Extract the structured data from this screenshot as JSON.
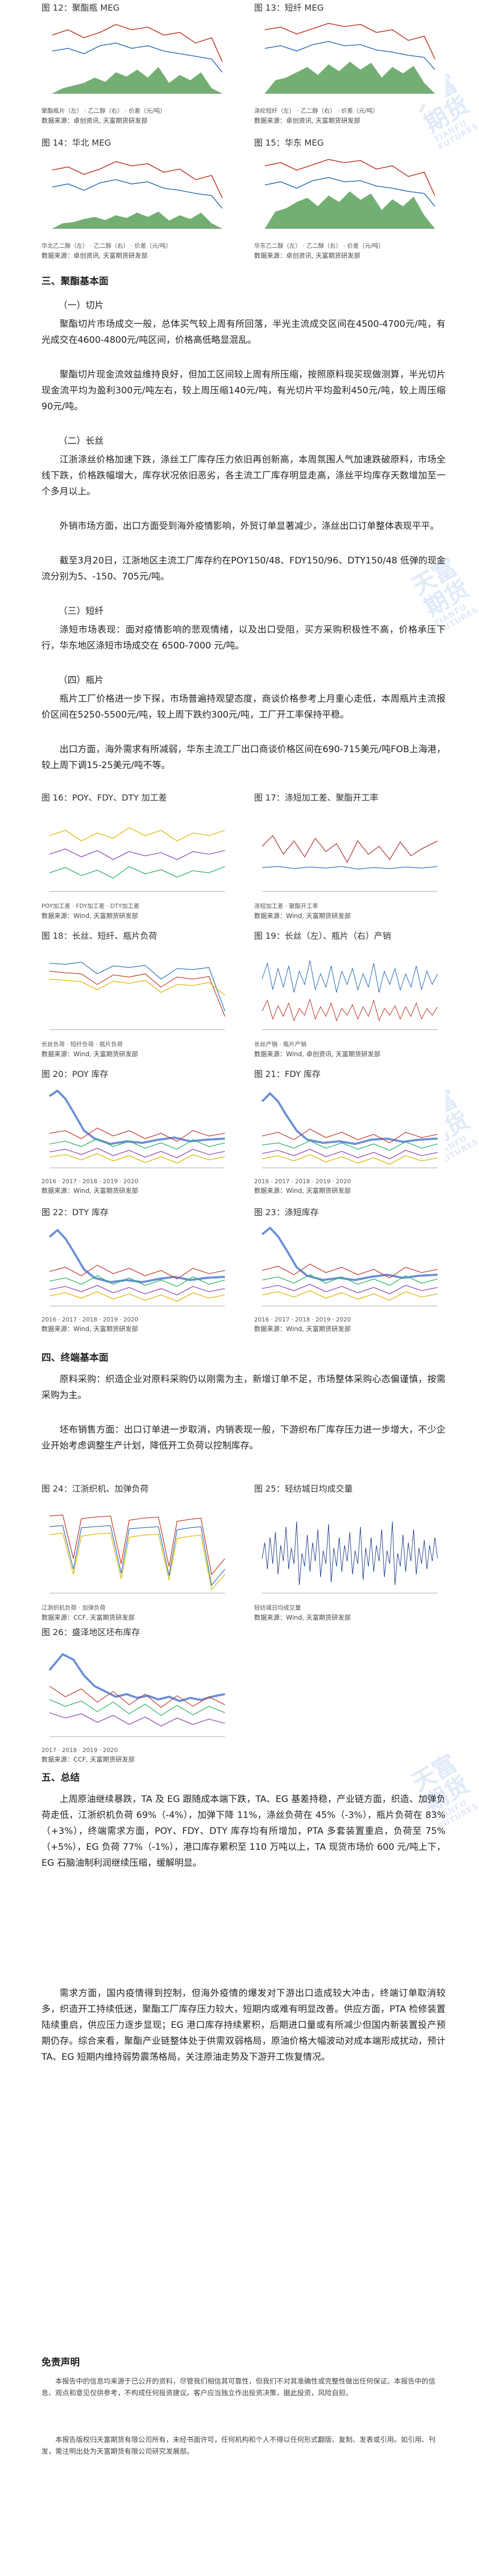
{
  "watermark": {
    "cn": "天富期货",
    "en": "TIANFU FUTURES"
  },
  "figs_top": [
    {
      "title": "图 12：聚酯瓶 MEG",
      "source": "数据来源：卓创资讯, 天富期货研发部",
      "legend": [
        "聚酯瓶片（左）",
        "乙二醇（右）",
        "价差（元/吨）"
      ]
    },
    {
      "title": "图 13：短纤 MEG",
      "source": "数据来源：卓创资讯, 天富期货研发部",
      "legend": [
        "涤纶短纤（左）",
        "乙二醇（右）",
        "价差（元/吨）"
      ]
    },
    {
      "title": "图 14：华北 MEG",
      "source": "数据来源：卓创资讯, 天富期货研发部",
      "legend": [
        "华北乙二醇（左）",
        "乙二醇（右）",
        "价差（元/吨）"
      ]
    },
    {
      "title": "图 15：华东 MEG",
      "source": "数据来源：卓创资讯, 天富期货研发部",
      "legend": [
        "华东乙二醇（左）",
        "乙二醇（右）",
        "价差（元/吨）"
      ]
    }
  ],
  "section3": {
    "title": "三、聚酯基本面"
  },
  "s3_1": {
    "title": "（一）切片",
    "p1": "聚酯切片市场成交一般，总体买气较上周有所回落，半光主流成交区间在4500-4700元/吨，有光成交在4600-4800元/吨区间，价格高低略显混乱。",
    "p2": "聚酯切片现金流效益维持良好，但加工区间较上周有所压缩，按照原料现买现做测算，半光切片现金流平均为盈利300元/吨左右，较上周压缩140元/吨，有光切片平均盈利450元/吨，较上周压缩90元/吨。"
  },
  "s3_2": {
    "title": "（二）长丝",
    "p1": "江浙涤丝价格加速下跌，涤丝工厂库存压力依旧再创新高，本周氛围人气加速跌破原料，市场全线下跌，价格跌幅增大，库存状况依旧恶劣，各主流工厂库存明显走高，涤丝平均库存天数增加至一个多月以上。",
    "p2": "外销市场方面，出口方面受到海外疫情影响，外贸订单显著减少，涤丝出口订单整体表现平平。",
    "p3": "截至3月20日，江浙地区主流工厂库存约在POY150/48、FDY150/96、DTY150/48 低弹的现金流分别为5、-150、705元/吨。"
  },
  "s3_3": {
    "title": "（三）短纤",
    "p1": "涤短市场表现：面对疫情影响的悲观情绪，以及出口受阻，买方采购积极性不高，价格承压下行，华东地区涤短市场成交在 6500-7000 元/吨。"
  },
  "s3_4": {
    "title": "（四）瓶片",
    "p1": "瓶片工厂价格进一步下探，市场普遍持观望态度，商谈价格参考上月重心走低，本周瓶片主流报价区间在5250-5500元/吨，较上周下跌约300元/吨，工厂开工率保持平稳。",
    "p2": "出口方面，海外需求有所减弱，华东主流工厂出口商谈价格区间在690-715美元/吨FOB上海港，较上周下调15-25美元/吨不等。"
  },
  "figs_mid": [
    {
      "title": "图 16：POY、FDY、DTY 加工差",
      "source": "数据来源：Wind, 天富期货研发部",
      "legend": [
        "POY加工差",
        "FDY加工差",
        "DTY加工差"
      ]
    },
    {
      "title": "图 17：涤短加工差、聚酯开工率",
      "source": "数据来源：Wind, 天富期货研发部",
      "legend": [
        "涤短加工差",
        "聚酯开工率"
      ]
    },
    {
      "title": "图 18：长丝、短纤、瓶片负荷",
      "source": "数据来源：Wind, 天富期货研发部",
      "legend": [
        "长丝负荷",
        "短纤负荷",
        "瓶片负荷"
      ]
    },
    {
      "title": "图 19：长丝（左）、瓶片（右）产销",
      "source": "数据来源：Wind, 卓创资讯, 天富期货研发部",
      "legend": [
        "长丝产销",
        "瓶片产销"
      ]
    },
    {
      "title": "图 20：POY 库存",
      "source": "数据来源：Wind, 天富期货研发部",
      "legend": [
        "2016",
        "2017",
        "2018",
        "2019",
        "2020"
      ]
    },
    {
      "title": "图 21：FDY 库存",
      "source": "数据来源：Wind, 天富期货研发部",
      "legend": [
        "2016",
        "2017",
        "2018",
        "2019",
        "2020"
      ]
    },
    {
      "title": "图 22：DTY 库存",
      "source": "数据来源：Wind, 天富期货研发部",
      "legend": [
        "2016",
        "2017",
        "2018",
        "2019",
        "2020"
      ]
    },
    {
      "title": "图 23：涤短库存",
      "source": "数据来源：Wind, 天富期货研发部",
      "legend": [
        "2016",
        "2017",
        "2018",
        "2019",
        "2020"
      ]
    }
  ],
  "section4": {
    "title": "四、终端基本面",
    "p1": "原料采购：织造企业对原料采购仍以刚需为主，新增订单不足，市场整体采购心态偏谨慎，按需采购为主。",
    "p2": "坯布销售方面：出口订单进一步取消，内销表现一般，下游织布厂库存压力进一步增大，不少企业开始考虑调整生产计划，降低开工负荷以控制库存。"
  },
  "figs_low": [
    {
      "title": "图 24：江浙织机、加弹负荷",
      "source": "数据来源：CCF, 天富期货研发部",
      "legend": [
        "江浙织机负荷",
        "加弹负荷"
      ]
    },
    {
      "title": "图 25：轻纺城日均成交量",
      "source": "数据来源：Wind, 天富期货研发部",
      "legend": [
        "轻纺城日均成交量"
      ]
    },
    {
      "title": "图 26：盛泽地区坯布库存",
      "source": "数据来源：CCF, 天富期货研发部",
      "legend": [
        "2017",
        "2018",
        "2019",
        "2020"
      ]
    }
  ],
  "section5": {
    "title": "五、总结",
    "p1": "上周原油继续暴跌，TA 及 EG 跟随成本端下跌，TA、EG 基差持稳，产业链方面，织造、加弹负荷走低，江浙织机负荷 69%（-4%），加弹下降 11%，涤丝负荷在 45%（-3%），瓶片负荷在 83%（+3%），终端需求方面，POY、FDY、DTY 库存均有所增加，PTA 多套装置重启，负荷至 75%（+5%），EG 负荷 77%（-1%），港口库存累积至 110 万吨以上，TA 现货市场价 600 元/吨上下，EG 石脑油制利润继续压缩，缓解明显。",
    "p2": "需求方面，国内疫情得到控制，但海外疫情的爆发对下游出口造成较大冲击，终端订单取消较多，织造开工持续低迷，聚酯工厂库存压力较大，短期内或难有明显改善。供应方面，PTA 检修装置陆续重启，供应压力逐步显现；EG 港口库存持续累积，后期进口量或有所减少但国内新装置投产预期仍存。综合来看，聚酯产业链整体处于供需双弱格局，原油价格大幅波动对成本端形成扰动，预计 TA、EG 短期内维持弱势震荡格局，关注原油走势及下游开工恢复情况。"
  },
  "disclaimer": {
    "title": "免责声明",
    "p1": "本报告中的信息均来源于已公开的资料，尽管我们相信其可靠性，但我们不对其准确性或完整性做出任何保证。本报告中的信息、观点和意见仅供参考，不构成任何投资建议。客户应当独立作出投资决策，据此投资，风险自担。",
    "p2": "本报告版权归天富期货有限公司所有，未经书面许可，任何机构和个人不得以任何形式翻版、复制、发表或引用。如引用、刊发，需注明出处为天富期货有限公司研究发展部。"
  }
}
